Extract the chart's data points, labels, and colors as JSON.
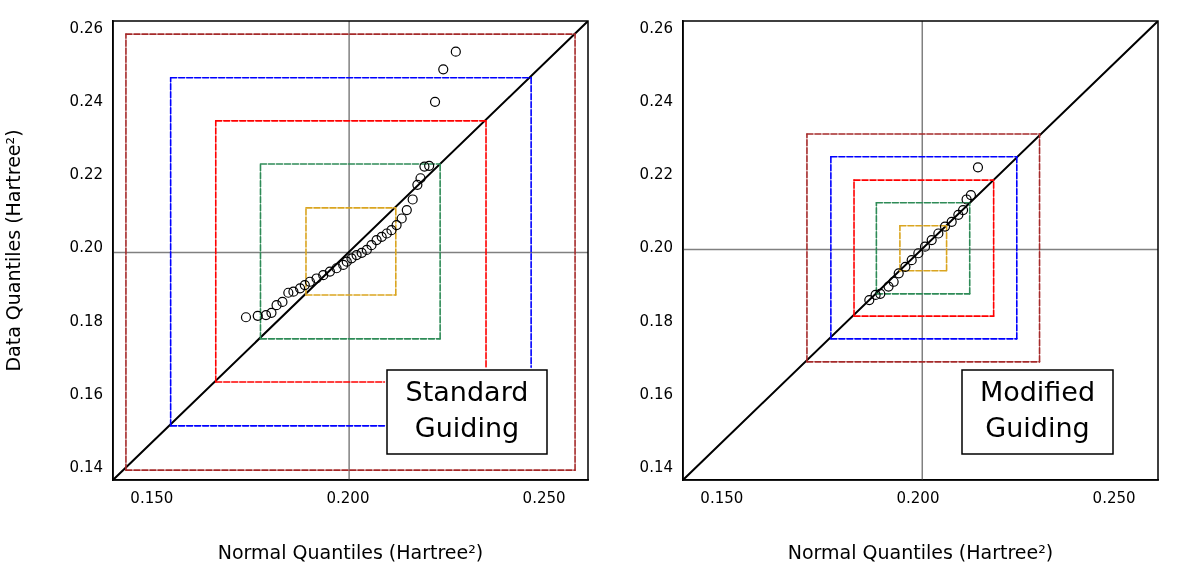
{
  "chart_data": [
    {
      "type": "scatter",
      "xlabel": "Normal Quantiles (Hartree²)",
      "ylabel": "Data Quantiles (Hartree²)",
      "xlim": [
        0.1401,
        0.2612
      ],
      "ylim": [
        0.1367,
        0.2622
      ],
      "xticks": [
        {
          "value": 0.15,
          "label": "0.150"
        },
        {
          "value": 0.2,
          "label": "0.200"
        },
        {
          "value": 0.25,
          "label": "0.250"
        }
      ],
      "yticks": [
        0.14,
        0.16,
        0.18,
        {
          "value": 0.2,
          "label": "0.20"
        },
        0.22,
        0.24,
        0.26
      ],
      "grid": false,
      "legend": false,
      "ref_lines": [
        {
          "axis": "x",
          "value": 0.2003,
          "color": "#808080"
        },
        {
          "axis": "y",
          "value": 0.1989,
          "color": "#808080"
        }
      ],
      "annotations": [
        "Standard\nGuiding"
      ],
      "series": [
        {
          "type": "line",
          "color": "#a52a2a",
          "marker": "none",
          "line_style": "dashed",
          "x": [
            0.1434,
            0.1434,
            0.2579
          ],
          "values": [
            0.1394,
            0.2586,
            0.2586
          ]
        },
        {
          "type": "line",
          "color": "#a52a2a",
          "marker": "none",
          "line_style": "dashed",
          "x": [
            0.1434,
            0.2579,
            0.2579
          ],
          "values": [
            0.1394,
            0.1394,
            0.2586
          ]
        },
        {
          "type": "line",
          "color": "#0000ff",
          "marker": "none",
          "line_style": "dashed",
          "x": [
            0.1548,
            0.1548,
            0.2467,
            0.2467
          ],
          "values": [
            0.1515,
            0.2467,
            0.2467,
            0.1675
          ]
        },
        {
          "type": "line",
          "color": "#0000ff",
          "marker": "none",
          "line_style": "dashed",
          "x": [
            0.1548,
            0.2093
          ],
          "values": [
            0.1515,
            0.1515
          ]
        },
        {
          "type": "line",
          "color": "#ff0000",
          "marker": "none",
          "line_style": "dashed",
          "x": [
            0.1663,
            0.1663,
            0.2352,
            0.2352
          ],
          "values": [
            0.1635,
            0.2349,
            0.2349,
            0.1675
          ]
        },
        {
          "type": "line",
          "color": "#ff0000",
          "marker": "none",
          "line_style": "dashed",
          "x": [
            0.1663,
            0.2093
          ],
          "values": [
            0.1635,
            0.1635
          ]
        },
        {
          "type": "line",
          "color": "#2e8b57",
          "marker": "none",
          "line_style": "dashed",
          "x": [
            0.1777,
            0.1777,
            0.2235
          ],
          "values": [
            0.1753,
            0.2231,
            0.2231
          ]
        },
        {
          "type": "line",
          "color": "#2e8b57",
          "marker": "none",
          "line_style": "dashed",
          "x": [
            0.1777,
            0.2235,
            0.2235
          ],
          "values": [
            0.1753,
            0.1753,
            0.2231
          ]
        },
        {
          "type": "line",
          "color": "#daa520",
          "marker": "none",
          "line_style": "dashed",
          "x": [
            0.1893,
            0.1893,
            0.2122
          ],
          "values": [
            0.1873,
            0.2111,
            0.2111
          ]
        },
        {
          "type": "line",
          "color": "#daa520",
          "marker": "none",
          "line_style": "dashed",
          "x": [
            0.1893,
            0.2122,
            0.2122
          ],
          "values": [
            0.1873,
            0.1873,
            0.2111
          ]
        },
        {
          "type": "line",
          "color": "#000000",
          "marker": "none",
          "line_style": "solid",
          "x": [
            0.1401,
            0.2612
          ],
          "values": [
            0.1367,
            0.2622
          ]
        },
        {
          "type": "scatter",
          "color": "#000000",
          "marker": "circle",
          "x": [
            0.174,
            0.177,
            0.1791,
            0.1805,
            0.1818,
            0.1833,
            0.1848,
            0.1861,
            0.1878,
            0.189,
            0.1903,
            0.192,
            0.1937,
            0.1954,
            0.1971,
            0.1988,
            0.1997,
            0.2009,
            0.2022,
            0.2035,
            0.2048,
            0.206,
            0.2073,
            0.2086,
            0.2099,
            0.2111,
            0.2124,
            0.2137,
            0.215,
            0.2165,
            0.2177,
            0.2185,
            0.2195,
            0.2207,
            0.2222,
            0.2243,
            0.2275
          ],
          "values": [
            0.1812,
            0.1816,
            0.1818,
            0.1824,
            0.1845,
            0.1854,
            0.1879,
            0.1882,
            0.1891,
            0.19,
            0.1909,
            0.1918,
            0.1927,
            0.1937,
            0.1946,
            0.1955,
            0.1964,
            0.1973,
            0.1982,
            0.1988,
            0.1996,
            0.2009,
            0.2023,
            0.2032,
            0.2041,
            0.205,
            0.2064,
            0.2082,
            0.2105,
            0.2134,
            0.2174,
            0.2192,
            0.2224,
            0.2226,
            0.2401,
            0.249,
            0.2538
          ]
        }
      ]
    },
    {
      "type": "scatter",
      "xlabel": "Normal Quantiles (Hartree²)",
      "xlim": [
        0.1401,
        0.2612
      ],
      "ylim": [
        0.1367,
        0.2622
      ],
      "xticks": [
        {
          "value": 0.15,
          "label": "0.150"
        },
        {
          "value": 0.2,
          "label": "0.200"
        },
        {
          "value": 0.25,
          "label": "0.250"
        }
      ],
      "yticks": [
        0.14,
        0.16,
        0.18,
        {
          "value": 0.2,
          "label": "0.20"
        },
        0.22,
        0.24,
        0.26
      ],
      "grid": false,
      "legend": false,
      "ref_lines": [
        {
          "axis": "x",
          "value": 0.2011,
          "color": "#808080"
        },
        {
          "axis": "y",
          "value": 0.1997,
          "color": "#808080"
        }
      ],
      "annotations": [
        "Modified\nGuiding"
      ],
      "series": [
        {
          "type": "line",
          "color": "#a52a2a",
          "marker": "none",
          "line_style": "dashed",
          "x": [
            0.1717,
            0.1717,
            0.231
          ],
          "values": [
            0.169,
            0.2313,
            0.2313
          ]
        },
        {
          "type": "line",
          "color": "#a52a2a",
          "marker": "none",
          "line_style": "dashed",
          "x": [
            0.1717,
            0.231,
            0.231
          ],
          "values": [
            0.169,
            0.169,
            0.2313
          ]
        },
        {
          "type": "line",
          "color": "#0000ff",
          "marker": "none",
          "line_style": "dashed",
          "x": [
            0.1778,
            0.1778,
            0.2252
          ],
          "values": [
            0.1753,
            0.2251,
            0.2251
          ]
        },
        {
          "type": "line",
          "color": "#0000ff",
          "marker": "none",
          "line_style": "dashed",
          "x": [
            0.1778,
            0.2252,
            0.2252
          ],
          "values": [
            0.1753,
            0.1753,
            0.2251
          ]
        },
        {
          "type": "line",
          "color": "#ff0000",
          "marker": "none",
          "line_style": "dashed",
          "x": [
            0.1837,
            0.1837,
            0.2193
          ],
          "values": [
            0.1815,
            0.2187,
            0.2187
          ]
        },
        {
          "type": "line",
          "color": "#ff0000",
          "marker": "none",
          "line_style": "dashed",
          "x": [
            0.1837,
            0.2193,
            0.2193
          ],
          "values": [
            0.1815,
            0.1815,
            0.2187
          ]
        },
        {
          "type": "line",
          "color": "#2e8b57",
          "marker": "none",
          "line_style": "dashed",
          "x": [
            0.1894,
            0.1894,
            0.2132
          ],
          "values": [
            0.1876,
            0.2125,
            0.2125
          ]
        },
        {
          "type": "line",
          "color": "#2e8b57",
          "marker": "none",
          "line_style": "dashed",
          "x": [
            0.1894,
            0.2132,
            0.2132
          ],
          "values": [
            0.1876,
            0.1876,
            0.2125
          ]
        },
        {
          "type": "line",
          "color": "#daa520",
          "marker": "none",
          "line_style": "dashed",
          "x": [
            0.1954,
            0.1954,
            0.2073
          ],
          "values": [
            0.1939,
            0.2062,
            0.2062
          ]
        },
        {
          "type": "line",
          "color": "#daa520",
          "marker": "none",
          "line_style": "dashed",
          "x": [
            0.1954,
            0.2073,
            0.2073
          ],
          "values": [
            0.1939,
            0.1939,
            0.2062
          ]
        },
        {
          "type": "line",
          "color": "#000000",
          "marker": "none",
          "line_style": "solid",
          "x": [
            0.1401,
            0.2612
          ],
          "values": [
            0.1367,
            0.2622
          ]
        },
        {
          "type": "scatter",
          "color": "#000000",
          "marker": "circle",
          "x": [
            0.1876,
            0.1892,
            0.1904,
            0.1925,
            0.1938,
            0.1951,
            0.1968,
            0.1984,
            0.2001,
            0.2018,
            0.2035,
            0.2052,
            0.2069,
            0.2086,
            0.2103,
            0.2115,
            0.2124,
            0.2135,
            0.2153
          ],
          "values": [
            0.1859,
            0.1873,
            0.1876,
            0.1896,
            0.1909,
            0.1932,
            0.195,
            0.1968,
            0.1987,
            0.2005,
            0.2023,
            0.2041,
            0.206,
            0.2073,
            0.2092,
            0.2105,
            0.2134,
            0.2146,
            0.2222
          ]
        }
      ]
    }
  ]
}
